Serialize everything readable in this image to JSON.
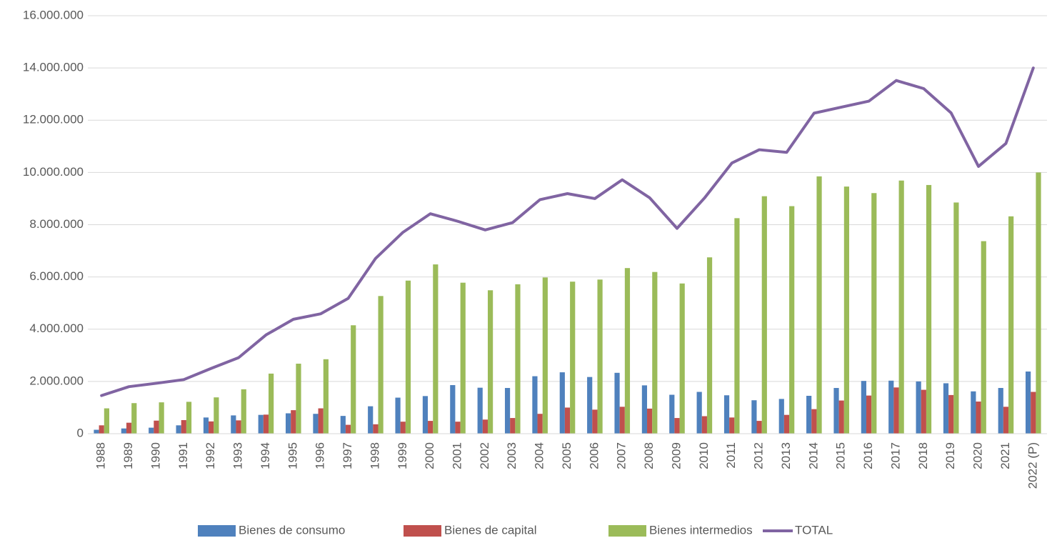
{
  "chart_data": {
    "type": "bar",
    "categories": [
      "1988",
      "1989",
      "1990",
      "1991",
      "1992",
      "1993",
      "1994",
      "1995",
      "1996",
      "1997",
      "1998",
      "1999",
      "2000",
      "2001",
      "2002",
      "2003",
      "2004",
      "2005",
      "2006",
      "2007",
      "2008",
      "2009",
      "2010",
      "2011",
      "2012",
      "2013",
      "2014",
      "2015",
      "2016",
      "2017",
      "2018",
      "2019",
      "2020",
      "2021",
      "2022 (P)"
    ],
    "series": [
      {
        "name": "Bienes de consumo",
        "color": "#4f81bd",
        "values": [
          150000,
          200000,
          230000,
          320000,
          620000,
          700000,
          720000,
          780000,
          760000,
          680000,
          1050000,
          1380000,
          1440000,
          1860000,
          1760000,
          1750000,
          2200000,
          2350000,
          2170000,
          2330000,
          1850000,
          1490000,
          1600000,
          1470000,
          1280000,
          1330000,
          1450000,
          1750000,
          2020000,
          2030000,
          2000000,
          1930000,
          1620000,
          1750000,
          2380000
        ]
      },
      {
        "name": "Bienes de capital",
        "color": "#c0504d",
        "values": [
          320000,
          420000,
          500000,
          520000,
          470000,
          510000,
          730000,
          900000,
          970000,
          340000,
          360000,
          460000,
          490000,
          460000,
          540000,
          600000,
          760000,
          1000000,
          920000,
          1030000,
          960000,
          600000,
          670000,
          620000,
          490000,
          720000,
          940000,
          1270000,
          1460000,
          1770000,
          1680000,
          1480000,
          1230000,
          1030000,
          1600000
        ]
      },
      {
        "name": "Bienes intermedios",
        "color": "#9bbb59",
        "values": [
          970000,
          1170000,
          1200000,
          1220000,
          1390000,
          1700000,
          2300000,
          2680000,
          2850000,
          4150000,
          5270000,
          5860000,
          6480000,
          5780000,
          5490000,
          5720000,
          5980000,
          5820000,
          5900000,
          6340000,
          6190000,
          5750000,
          6750000,
          8250000,
          9090000,
          8710000,
          9850000,
          9460000,
          9210000,
          9690000,
          9520000,
          8850000,
          7370000,
          8320000,
          10000000
        ]
      },
      {
        "name": "TOTAL",
        "color": "#8064a2",
        "type": "line",
        "values": [
          1460000,
          1800000,
          1930000,
          2070000,
          2500000,
          2910000,
          3780000,
          4380000,
          4590000,
          5180000,
          6710000,
          7710000,
          8420000,
          8130000,
          7800000,
          8080000,
          8960000,
          9190000,
          9000000,
          9720000,
          9030000,
          7860000,
          9020000,
          10360000,
          10870000,
          10770000,
          12270000,
          12500000,
          12730000,
          13520000,
          13210000,
          12280000,
          10230000,
          11110000,
          14000000
        ]
      }
    ],
    "ylim": [
      0,
      16000000
    ],
    "yticks": [
      0,
      {
        "value": 2000000,
        "label": "2.000.000"
      },
      {
        "value": 4000000,
        "label": "4.000.000"
      },
      {
        "value": 6000000,
        "label": "6.000.000"
      },
      {
        "value": 8000000,
        "label": "8.000.000"
      },
      {
        "value": 10000000,
        "label": "10.000.000"
      },
      {
        "value": 12000000,
        "label": "12.000.000"
      },
      {
        "value": 14000000,
        "label": "14.000.000"
      },
      {
        "value": 16000000,
        "label": "16.000.000"
      }
    ],
    "grid": true,
    "legend": "bottom"
  }
}
